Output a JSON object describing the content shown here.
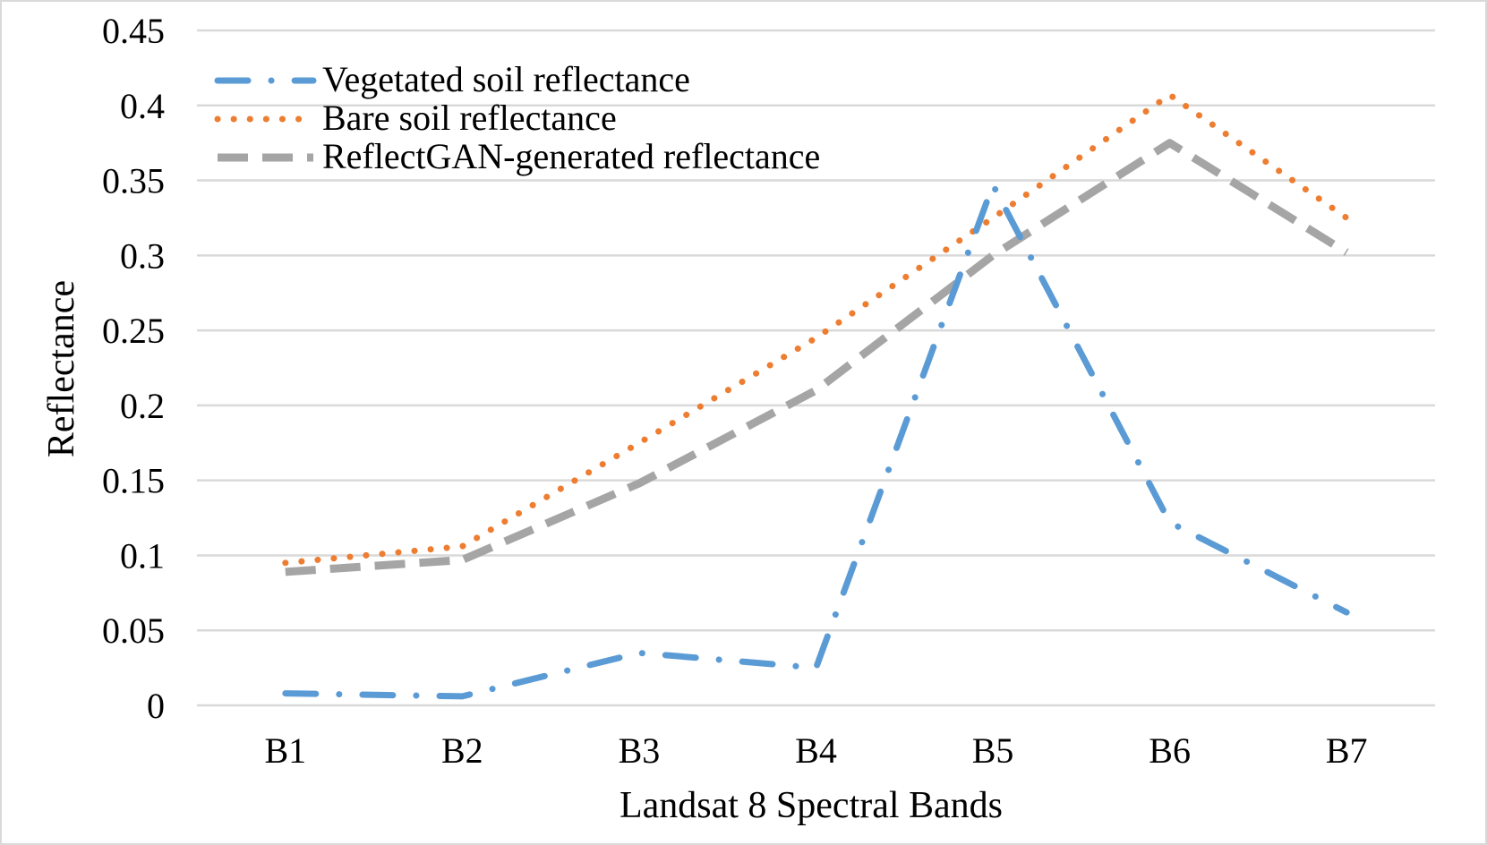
{
  "chart_data": {
    "type": "line",
    "title": "",
    "xlabel": "Landsat 8 Spectral Bands",
    "ylabel": "Reflectance",
    "categories": [
      "B1",
      "B2",
      "B3",
      "B4",
      "B5",
      "B6",
      "B7"
    ],
    "ylim": [
      0,
      0.45
    ],
    "yticks": [
      0,
      0.05,
      0.1,
      0.15,
      0.2,
      0.25,
      0.3,
      0.35,
      0.4,
      0.45
    ],
    "ytick_labels": [
      "0",
      "0.05",
      "0.1",
      "0.15",
      "0.2",
      "0.25",
      "0.3",
      "0.35",
      "0.4",
      "0.45"
    ],
    "grid": true,
    "legend_position": "top-left",
    "series": [
      {
        "name": "Vegetated soil reflectance",
        "color": "#5b9bd5",
        "style": "dash-dot",
        "values": [
          0.008,
          0.006,
          0.035,
          0.025,
          0.347,
          0.122,
          0.062
        ]
      },
      {
        "name": "Bare soil reflectance",
        "color": "#ed7d31",
        "style": "dotted",
        "values": [
          0.095,
          0.106,
          0.175,
          0.245,
          0.325,
          0.407,
          0.325
        ]
      },
      {
        "name": "ReflectGAN-generated reflectance",
        "color": "#a5a5a5",
        "style": "dashed",
        "values": [
          0.089,
          0.097,
          0.148,
          0.21,
          0.3,
          0.375,
          0.302
        ]
      }
    ]
  }
}
